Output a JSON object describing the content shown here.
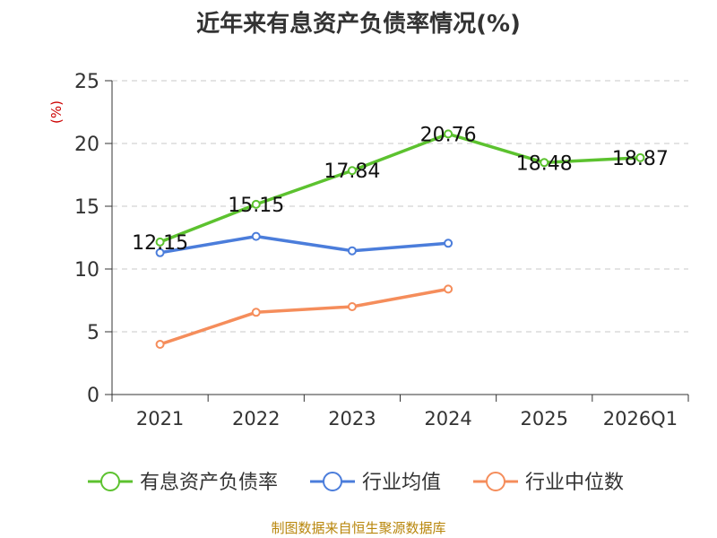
{
  "chart_data": {
    "type": "line",
    "title": "近年来有息资产负债率情况(%)",
    "ylabel": "(%)",
    "xlabel": "",
    "categories": [
      "2021",
      "2022",
      "2023",
      "2024",
      "2025",
      "2026Q1"
    ],
    "ylim": [
      0,
      25
    ],
    "yticks": [
      0,
      5,
      10,
      15,
      20,
      25
    ],
    "grid": true,
    "legend_position": "bottom",
    "series": [
      {
        "name": "有息资产负债率",
        "color": "#5cc22f",
        "values": [
          12.15,
          15.15,
          17.84,
          20.76,
          18.48,
          18.87
        ],
        "labels": [
          "12.15",
          "15.15",
          "17.84",
          "20.76",
          "18.48",
          "18.87"
        ]
      },
      {
        "name": "行业均值",
        "color": "#4b7ddb",
        "values": [
          11.3,
          12.6,
          11.45,
          12.05,
          null,
          null
        ]
      },
      {
        "name": "行业中位数",
        "color": "#f58d5b",
        "values": [
          4.0,
          6.55,
          7.0,
          8.4,
          null,
          null
        ]
      }
    ],
    "source": "制图数据来自恒生聚源数据库"
  }
}
